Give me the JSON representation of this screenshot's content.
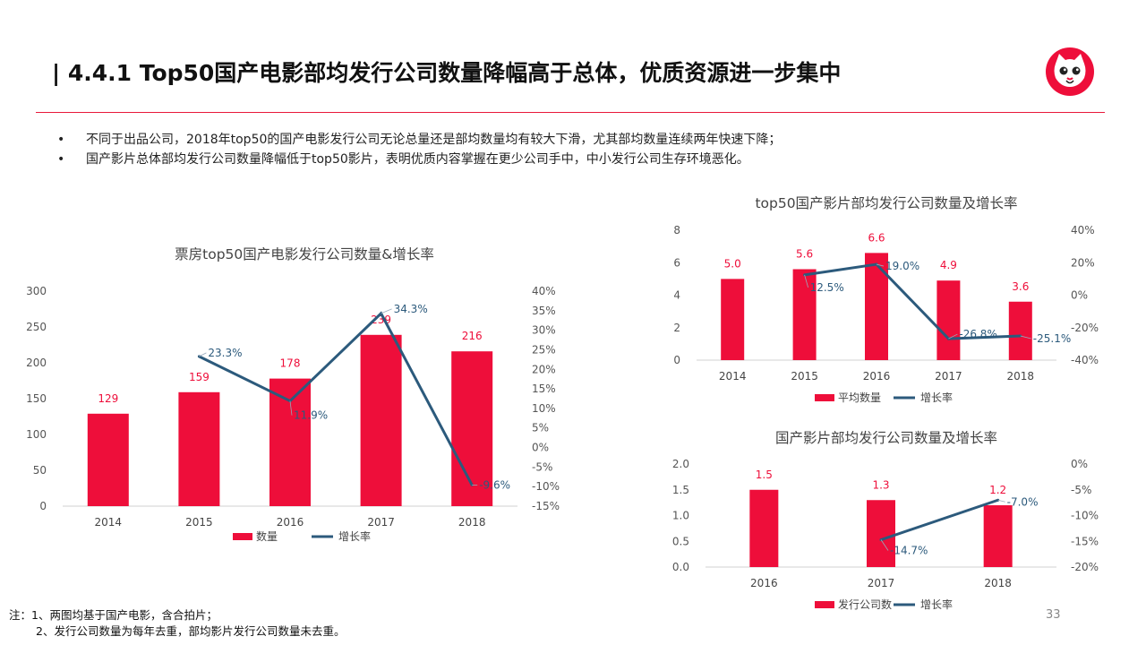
{
  "header": {
    "title": "| 4.4.1 Top50国产电影部均发行公司数量降幅高于总体，优质资源进一步集中",
    "logo_icon": "cat-logo-icon"
  },
  "bullets": [
    "不同于出品公司，2018年top50的国产电影发行公司无论总量还是部均数量均有较大下滑，尤其部均数量连续两年快速下降；",
    "国产影片总体部均发行公司数量降幅低于top50影片，表明优质内容掌握在更少公司手中，中小发行公司生存环境恶化。"
  ],
  "colors": {
    "bar": "#ee0e3a",
    "line": "#2c5a7c",
    "rule": "#e8193b"
  },
  "chart_data": [
    {
      "type": "bar",
      "title": "票房top50国产电影发行公司数量&增长率",
      "categories": [
        "2014",
        "2015",
        "2016",
        "2017",
        "2018"
      ],
      "series": [
        {
          "name": "数量",
          "kind": "bar",
          "axis": "left",
          "values": [
            129,
            159,
            178,
            239,
            216
          ],
          "labels": [
            "129",
            "159",
            "178",
            "239",
            "216"
          ]
        },
        {
          "name": "增长率",
          "kind": "line",
          "axis": "right",
          "values": [
            null,
            23.3,
            11.9,
            34.3,
            -9.6
          ],
          "labels": [
            "",
            "23.3%",
            "11.9%",
            "34.3%",
            "-9.6%"
          ]
        }
      ],
      "ylim_left": [
        0,
        300
      ],
      "yticks_left": [
        "0",
        "50",
        "100",
        "150",
        "200",
        "250",
        "300"
      ],
      "ylim_right": [
        -15,
        40
      ],
      "yticks_right": [
        "-15%",
        "-10%",
        "-5%",
        "0%",
        "5%",
        "10%",
        "15%",
        "20%",
        "25%",
        "30%",
        "35%",
        "40%"
      ],
      "legend": "bottom"
    },
    {
      "type": "bar",
      "title": "top50国产影片部均发行公司数量及增长率",
      "categories": [
        "2014",
        "2015",
        "2016",
        "2017",
        "2018"
      ],
      "series": [
        {
          "name": "平均数量",
          "kind": "bar",
          "axis": "left",
          "values": [
            5.0,
            5.6,
            6.6,
            4.9,
            3.6
          ],
          "labels": [
            "5.0",
            "5.6",
            "6.6",
            "4.9",
            "3.6"
          ]
        },
        {
          "name": "增长率",
          "kind": "line",
          "axis": "right",
          "values": [
            null,
            12.5,
            19.0,
            -26.8,
            -25.1
          ],
          "labels": [
            "",
            "12.5%",
            "19.0%",
            "-26.8%",
            "-25.1%"
          ]
        }
      ],
      "ylim_left": [
        0,
        8
      ],
      "yticks_left": [
        "0",
        "2",
        "4",
        "6",
        "8"
      ],
      "ylim_right": [
        -40,
        40
      ],
      "yticks_right": [
        "-40%",
        "-20%",
        "0%",
        "20%",
        "40%"
      ],
      "legend": "bottom"
    },
    {
      "type": "bar",
      "title": "国产影片部均发行公司数量及增长率",
      "categories": [
        "2016",
        "2017",
        "2018"
      ],
      "series": [
        {
          "name": "发行公司数",
          "kind": "bar",
          "axis": "left",
          "values": [
            1.5,
            1.3,
            1.2
          ],
          "labels": [
            "1.5",
            "1.3",
            "1.2"
          ]
        },
        {
          "name": "增长率",
          "kind": "line",
          "axis": "right",
          "values": [
            null,
            -14.7,
            -7.0
          ],
          "labels": [
            "",
            "-14.7%",
            "-7.0%"
          ]
        }
      ],
      "ylim_left": [
        0,
        2
      ],
      "yticks_left": [
        "0.0",
        "0.5",
        "1.0",
        "1.5",
        "2.0"
      ],
      "ylim_right": [
        -20,
        0
      ],
      "yticks_right": [
        "-20%",
        "-15%",
        "-10%",
        "-5%",
        "0%"
      ],
      "legend": "bottom"
    }
  ],
  "notes": [
    "注：1、两图均基于国产电影，含合拍片；",
    "2、发行公司数量为每年去重，部均影片发行公司数量未去重。"
  ],
  "page_number": "33"
}
